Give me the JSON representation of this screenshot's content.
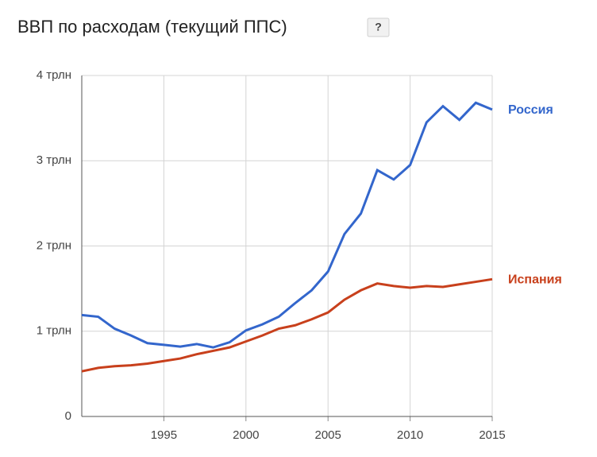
{
  "chart_data": {
    "type": "line",
    "title": "ВВП по расходам (текущий ППС)",
    "help": "?",
    "x": [
      1990,
      1991,
      1992,
      1993,
      1994,
      1995,
      1996,
      1997,
      1998,
      1999,
      2000,
      2001,
      2002,
      2003,
      2004,
      2005,
      2006,
      2007,
      2008,
      2009,
      2010,
      2011,
      2012,
      2013,
      2014,
      2015
    ],
    "xlim": [
      1990,
      2015
    ],
    "xticks": [
      1995,
      2000,
      2005,
      2010,
      2015
    ],
    "ylim": [
      0,
      4
    ],
    "yticks": [
      0,
      {
        "value": 1,
        "label": "1 трлн"
      },
      {
        "value": 2,
        "label": "2 трлн"
      },
      {
        "value": 3,
        "label": "3 трлн"
      },
      {
        "value": 4,
        "label": "4 трлн"
      }
    ],
    "grid": true,
    "series": [
      {
        "name": "Россия",
        "color": "#3366cc",
        "values": [
          1.19,
          1.17,
          1.03,
          0.95,
          0.86,
          0.84,
          0.82,
          0.85,
          0.81,
          0.87,
          1.01,
          1.08,
          1.17,
          1.33,
          1.48,
          1.7,
          2.14,
          2.38,
          2.89,
          2.78,
          2.95,
          3.45,
          3.64,
          3.48,
          3.68,
          3.6
        ]
      },
      {
        "name": "Испания",
        "color": "#c8401c",
        "values": [
          0.53,
          0.57,
          0.59,
          0.6,
          0.62,
          0.65,
          0.68,
          0.73,
          0.77,
          0.81,
          0.88,
          0.95,
          1.03,
          1.07,
          1.14,
          1.22,
          1.37,
          1.48,
          1.56,
          1.53,
          1.51,
          1.53,
          1.52,
          1.55,
          1.58,
          1.61
        ]
      }
    ]
  }
}
